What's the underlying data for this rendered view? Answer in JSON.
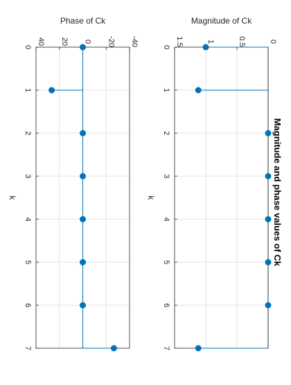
{
  "figure_title": "Magnitude and phase values of Ck",
  "chart_data": [
    {
      "type": "stem",
      "title": "Magnitude of Ck",
      "xlabel": "k",
      "ylabel": "",
      "x": [
        0,
        1,
        2,
        3,
        4,
        5,
        6,
        7
      ],
      "values": [
        1.0,
        1.12,
        0,
        0,
        0,
        0,
        0,
        1.12
      ],
      "xlim": [
        0,
        7
      ],
      "ylim": [
        0,
        1.5
      ],
      "xticks": [
        "0",
        "1",
        "2",
        "3",
        "4",
        "5",
        "6",
        "7"
      ],
      "yticks": [
        "0",
        "0.5",
        "1",
        "1.5"
      ],
      "ytick_values": [
        0,
        0.5,
        1,
        1.5
      ],
      "grid": true,
      "color": "#0072BD",
      "orientation": "rotated 90 degrees clockwise"
    },
    {
      "type": "stem",
      "title": "Phase of Ck",
      "xlabel": "k",
      "ylabel": "",
      "x": [
        0,
        1,
        2,
        3,
        4,
        5,
        6,
        7
      ],
      "values": [
        0,
        26.6,
        0,
        0,
        0,
        0,
        0,
        -26.6
      ],
      "xlim": [
        0,
        7
      ],
      "ylim": [
        -40,
        40
      ],
      "xticks": [
        "0",
        "1",
        "2",
        "3",
        "4",
        "5",
        "6",
        "7"
      ],
      "yticks": [
        "-40",
        "-20",
        "0",
        "20",
        "40"
      ],
      "ytick_values": [
        -40,
        -20,
        0,
        20,
        40
      ],
      "grid": true,
      "color": "#0072BD",
      "orientation": "rotated 90 degrees clockwise"
    }
  ]
}
